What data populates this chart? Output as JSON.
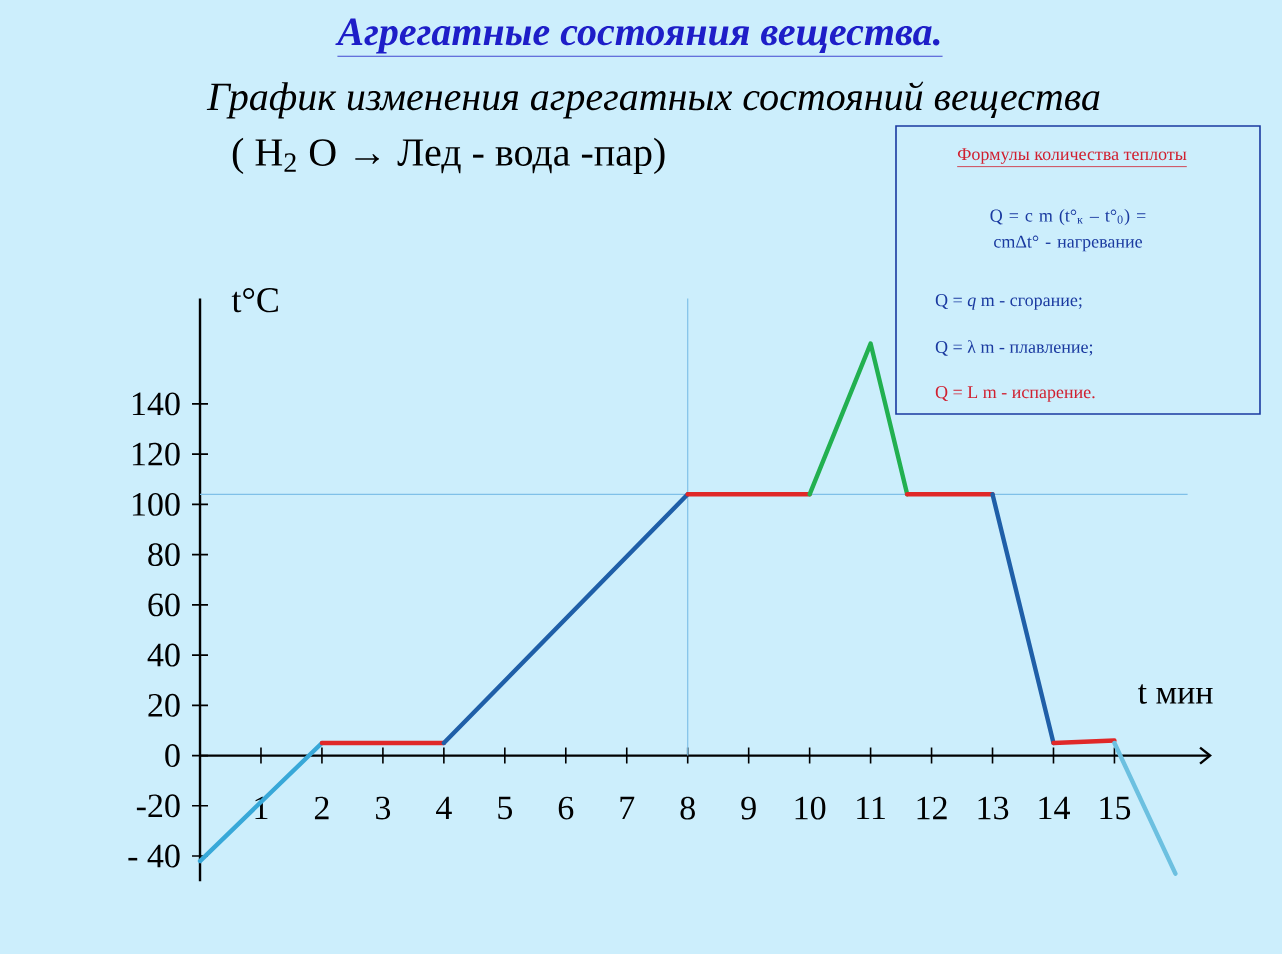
{
  "chart_data": {
    "type": "line",
    "title": "Агрегатные состояния вещества.",
    "subtitle": "График изменения  агрегатных состояний вещества",
    "xlabel": "t мин",
    "ylabel": "t°C",
    "annotations": [
      "( H$_{2}$ O → Лед - вода -пар)",
      "Формулы  количества  теплоты",
      "Q = c m (t°$_{к}$ – t°$_{0}$) = cmΔt°  -  нагревание",
      "Q = *q* m     - сгорание;",
      "Q = λ m     - плавление;",
      "Q = L m     - испарение."
    ],
    "xlim": [
      0,
      16.6
    ],
    "ylim": [
      -50,
      182
    ],
    "xticks": [
      1,
      2,
      3,
      4,
      5,
      6,
      7,
      8,
      9,
      10,
      11,
      12,
      13,
      14,
      15
    ],
    "yticks": [
      140,
      120,
      100,
      80,
      60,
      40,
      20,
      0,
      -20,
      {
        "value": -40,
        "label": "- 40"
      }
    ],
    "ref_lines": [
      {
        "axis": "x",
        "value": 8,
        "color": "#7fc0e8"
      },
      {
        "axis": "y",
        "value": 104,
        "color": "#7fc0e8"
      }
    ],
    "series": [
      {
        "color": "#38a8d8",
        "x": [
          0,
          2
        ],
        "values": [
          -42,
          5
        ]
      },
      {
        "color": "#e02828",
        "x": [
          2,
          4
        ],
        "values": [
          5,
          5
        ]
      },
      {
        "color": "#1f5fa8",
        "x": [
          4,
          8
        ],
        "values": [
          5,
          104
        ]
      },
      {
        "color": "#e02828",
        "x": [
          8,
          10
        ],
        "values": [
          104,
          104
        ]
      },
      {
        "color": "#22b050",
        "x": [
          10,
          11,
          11.6
        ],
        "values": [
          104,
          164,
          104
        ]
      },
      {
        "color": "#e02828",
        "x": [
          11.6,
          13
        ],
        "values": [
          104,
          104
        ]
      },
      {
        "color": "#1f5fa8",
        "x": [
          13,
          14
        ],
        "values": [
          104,
          5
        ]
      },
      {
        "color": "#e02828",
        "x": [
          14,
          15
        ],
        "values": [
          5,
          6
        ]
      },
      {
        "color": "#6cc0e0",
        "x": [
          15,
          16
        ],
        "values": [
          5,
          -47
        ]
      }
    ]
  }
}
